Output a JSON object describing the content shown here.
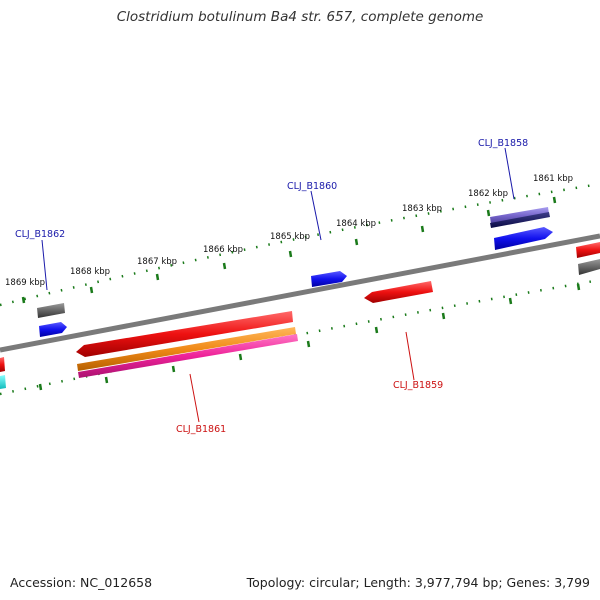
{
  "title": "Clostridium botulinum Ba4 str. 657, complete genome",
  "footer": {
    "accession": "Accession: NC_012658",
    "stats": "Topology: circular; Length: 3,977,794 bp; Genes: 3,799"
  },
  "colors": {
    "backbone": "#7a7a7a",
    "ticks": "#1a7a1a",
    "label_blue": "#1a1aaa",
    "label_red": "#cc1111",
    "gene_red": "#ee1111",
    "gene_blue": "#1111ee",
    "gene_grey": "#666666",
    "gene_orange": "#f08a18",
    "gene_magenta": "#ee2299",
    "gene_purple": "#7766cc",
    "gene_cyan": "#22dddd"
  },
  "ticks": [
    "1869 kbp",
    "1868 kbp",
    "1867 kbp",
    "1866 kbp",
    "1865 kbp",
    "1864 kbp",
    "1863 kbp",
    "1862 kbp",
    "1861 kbp"
  ],
  "genes": [
    {
      "id": "gene-cij-b1862",
      "label": "CLJ_B1862",
      "color_key": "label_blue"
    },
    {
      "id": "gene-cij-b1860",
      "label": "CLJ_B1860",
      "color_key": "label_blue"
    },
    {
      "id": "gene-cij-b1858",
      "label": "CLJ_B1858",
      "color_key": "label_blue"
    },
    {
      "id": "gene-cij-b1861",
      "label": "CLJ_B1861",
      "color_key": "label_red"
    },
    {
      "id": "gene-cij-b1859",
      "label": "CLJ_B1859",
      "color_key": "label_red"
    }
  ]
}
